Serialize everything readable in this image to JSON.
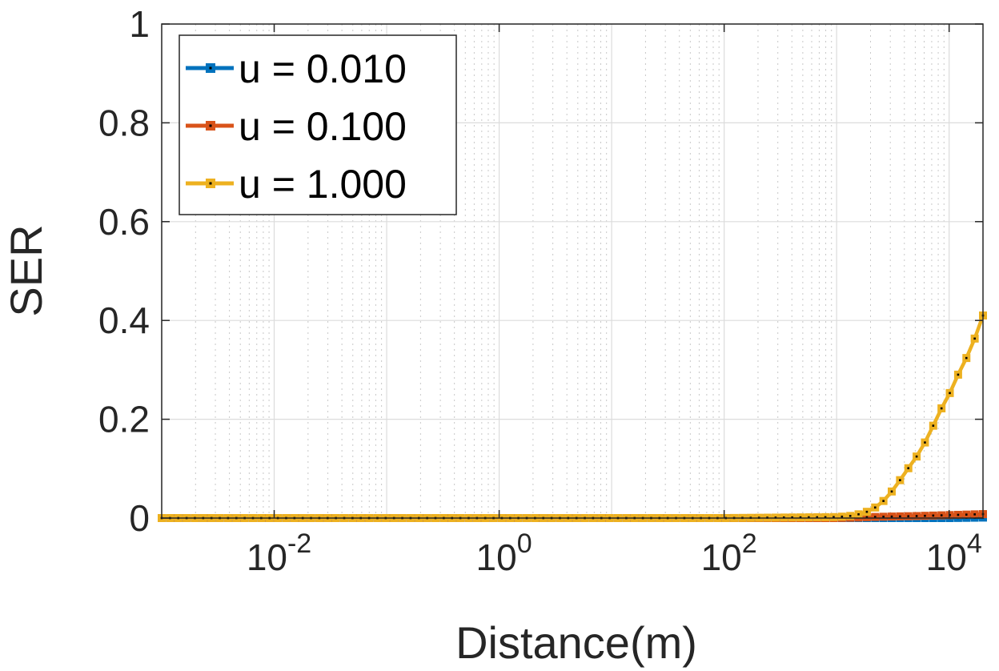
{
  "chart_data": {
    "type": "line",
    "xscale": "log",
    "xlabel": "Distance(m)",
    "ylabel": "SER",
    "xlim": [
      0.001,
      20000
    ],
    "ylim": [
      0,
      1
    ],
    "x_ticks": [
      0.01,
      1,
      100,
      10000
    ],
    "x_tick_labels": [
      {
        "base": "10",
        "exp": "-2"
      },
      {
        "base": "10",
        "exp": "0"
      },
      {
        "base": "10",
        "exp": "2"
      },
      {
        "base": "10",
        "exp": "4"
      }
    ],
    "y_ticks": [
      0,
      0.2,
      0.4,
      0.6,
      0.8,
      1
    ],
    "y_tick_labels": [
      "0",
      "0.2",
      "0.4",
      "0.6",
      "0.8",
      "1"
    ],
    "grid": "on (major solid, minor dotted)",
    "legend_location": "top-left",
    "series": [
      {
        "name": "u = 0.010",
        "color": "#0072BD",
        "x": [
          0.001,
          1,
          1000,
          5000,
          10000,
          20000
        ],
        "y": [
          0,
          0,
          0,
          0,
          0,
          0.001
        ]
      },
      {
        "name": "u = 0.100",
        "color": "#D95319",
        "x": [
          0.001,
          1,
          1000,
          1500,
          2000,
          3000,
          5000,
          10000,
          20000
        ],
        "y": [
          0,
          0,
          0,
          0.001,
          0.002,
          0.003,
          0.004,
          0.006,
          0.008
        ]
      },
      {
        "name": "u = 1.000",
        "color": "#EDB120",
        "x": [
          0.001,
          1,
          100,
          1000,
          1300,
          1600,
          2000,
          2500,
          3000,
          3500,
          4000,
          5000,
          6000,
          7000,
          8000,
          10000,
          12000,
          14000,
          17000,
          20000
        ],
        "y": [
          0,
          0,
          0,
          0.002,
          0.004,
          0.008,
          0.015,
          0.03,
          0.05,
          0.07,
          0.09,
          0.12,
          0.15,
          0.18,
          0.21,
          0.25,
          0.29,
          0.32,
          0.365,
          0.41
        ]
      }
    ]
  }
}
